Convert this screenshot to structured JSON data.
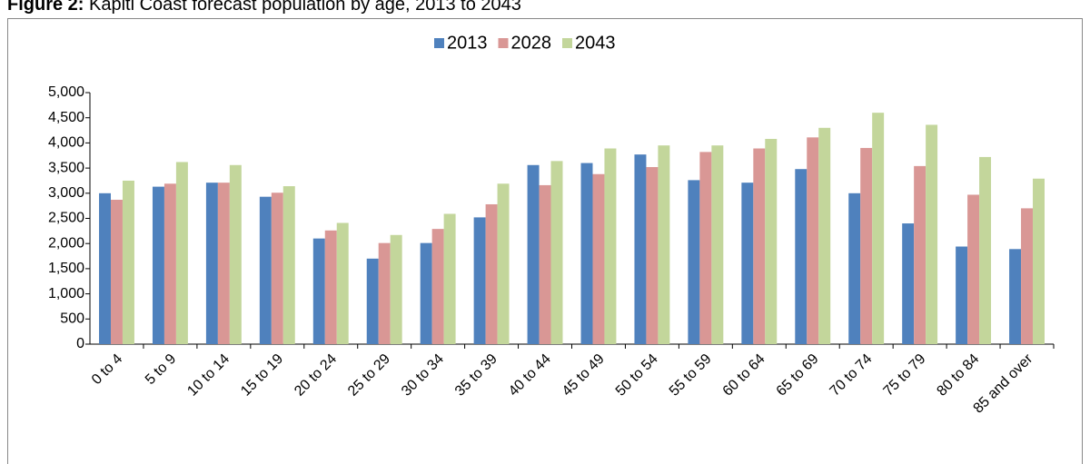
{
  "chart_data": {
    "type": "bar",
    "title_label": "Figure 2:",
    "title": "Kapiti Coast forecast population by age, 2013 to 2043",
    "categories": [
      "0 to 4",
      "5 to 9",
      "10 to 14",
      "15 to 19",
      "20 to 24",
      "25 to 29",
      "30 to 34",
      "35 to 39",
      "40 to 44",
      "45 to 49",
      "50 to 54",
      "55 to 59",
      "60 to 64",
      "65 to 69",
      "70 to 74",
      "75 to 79",
      "80 to 84",
      "85 and over"
    ],
    "series": [
      {
        "name": "2013",
        "color": "#4f81bd",
        "values": [
          3000,
          3130,
          3210,
          2930,
          2100,
          1700,
          2010,
          2520,
          3560,
          3600,
          3770,
          3260,
          3210,
          3480,
          3000,
          2400,
          1940,
          1890
        ]
      },
      {
        "name": "2028",
        "color": "#d99795",
        "values": [
          2870,
          3190,
          3210,
          3010,
          2260,
          2010,
          2290,
          2780,
          3160,
          3380,
          3520,
          3820,
          3890,
          4110,
          3900,
          3540,
          2970,
          2700
        ]
      },
      {
        "name": "2043",
        "color": "#c3d69b",
        "values": [
          3250,
          3620,
          3560,
          3140,
          2410,
          2170,
          2590,
          3190,
          3640,
          3890,
          3950,
          3950,
          4080,
          4300,
          4600,
          4360,
          3720,
          3290
        ]
      }
    ],
    "ylim": [
      0,
      5000
    ],
    "yticks": [
      0,
      500,
      {
        "value": 1000,
        "label": "1,000"
      },
      {
        "value": 1500,
        "label": "1,500"
      },
      {
        "value": 2000,
        "label": "2,000"
      },
      {
        "value": 2500,
        "label": "2,500"
      },
      {
        "value": 3000,
        "label": "3,000"
      },
      {
        "value": 3500,
        "label": "3,500"
      },
      {
        "value": 4000,
        "label": "4,000"
      },
      {
        "value": 4500,
        "label": "4,500"
      },
      {
        "value": 5000,
        "label": "5,000"
      }
    ],
    "legend": "top"
  }
}
